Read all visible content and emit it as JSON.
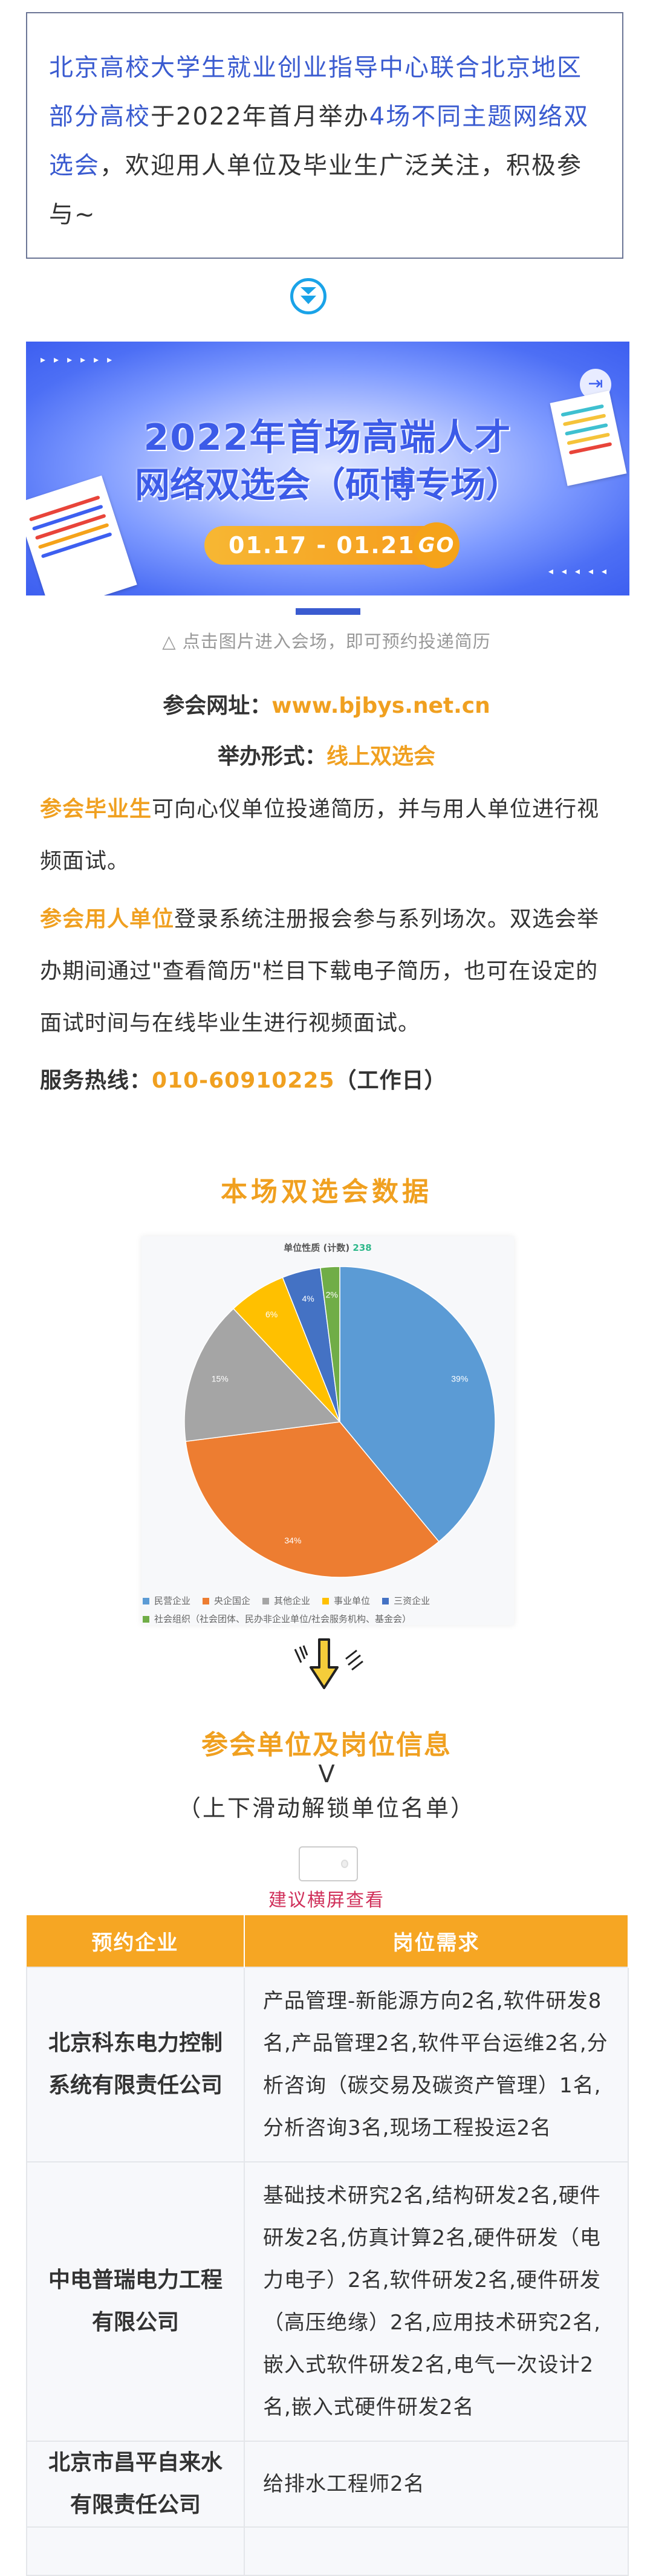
{
  "intro": {
    "part1": "北京高校大学生就业创业指导中心联合北京地区部分高校",
    "part2": "于2022年首月举办",
    "part3": "4场不同主题网络双选会",
    "part4": "，欢迎用人单位及毕业生广泛关注，积极参与~"
  },
  "banner": {
    "title_line1": "2022年首场高端人才",
    "title_line2": "网络双选会（硕博专场）",
    "dates": "01.17 - 01.21",
    "go_label": "GO"
  },
  "caption": "△ 点击图片进入会场，即可预约投递简历",
  "info": {
    "site_label": "参会网址：",
    "site_value": "www.bjbys.net.cn",
    "form_label": "举办形式：",
    "form_value": "线上双选会",
    "grad_highlight": "参会毕业生",
    "grad_text": "可向心仪单位投递简历，并与用人单位进行视频面试。",
    "emp_highlight": "参会用人单位",
    "emp_text": "登录系统注册报会参与系列场次。双选会举办期间通过\"查看简历\"栏目下载电子简历，也可在设定的面试时间与在线毕业生进行视频面试。",
    "hotline_label": "服务热线：",
    "hotline_value": "010-60910225",
    "hotline_note": "（工作日）"
  },
  "chart_section_title": "本场双选会数据",
  "chart_data": {
    "type": "pie",
    "title": "单位性质 (计数)",
    "total": "238",
    "legend_position": "bottom",
    "categories": [
      "民营企业",
      "央企国企",
      "其他企业",
      "事业单位",
      "三资企业",
      "社会组织（社会团体、民办非企业单位/社会服务机构、基金会）"
    ],
    "values": [
      39,
      34,
      15,
      6,
      4,
      2
    ],
    "labels": [
      "39%",
      "34%",
      "15%",
      "6%",
      "4%",
      "2%"
    ],
    "colors": [
      "#5b9bd5",
      "#ed7d31",
      "#a5a5a5",
      "#ffc000",
      "#4472c4",
      "#70ad47"
    ]
  },
  "units_section": {
    "title": "参会单位及岗位信息",
    "arrow_text": "V",
    "subtitle": "（上下滑动解锁单位名单）",
    "hint": "建议横屏查看"
  },
  "table": {
    "headers": [
      "预约企业",
      "岗位需求"
    ],
    "rows": [
      {
        "company": "北京科东电力控制系统有限责任公司",
        "positions": "产品管理-新能源方向2名,软件研发8名,产品管理2名,软件平台运维2名,分析咨询（碳交易及碳资产管理）1名,分析咨询3名,现场工程投运2名"
      },
      {
        "company": "中电普瑞电力工程有限公司",
        "positions": "基础技术研究2名,结构研发2名,硬件研发2名,仿真计算2名,硬件研发（电力电子）2名,软件研发2名,硬件研发（高压绝缘）2名,应用技术研究2名,嵌入式软件研发2名,电气一次设计2名,嵌入式硬件研发2名"
      },
      {
        "company": "北京市昌平自来水有限责任公司",
        "positions": "给排水工程师2名"
      },
      {
        "company": "",
        "positions": ""
      }
    ]
  }
}
